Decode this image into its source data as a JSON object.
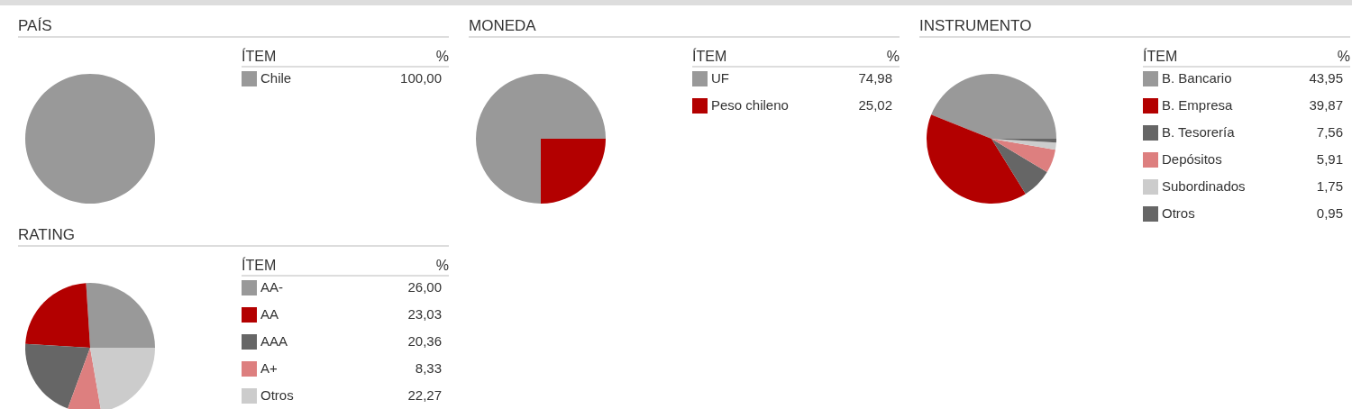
{
  "chart_data": [
    {
      "type": "pie",
      "title": "PAÍS",
      "legend_title": "ÍTEM",
      "annotations": [
        "%"
      ],
      "legend": "right",
      "categories": [
        "Chile"
      ],
      "values": [
        100
      ],
      "value_labels": [
        "100,00"
      ],
      "colors": [
        "#999999"
      ]
    },
    {
      "type": "pie",
      "title": "MONEDA",
      "legend_title": "ÍTEM",
      "annotations": [
        "%"
      ],
      "legend": "right",
      "categories": [
        "UF",
        "Peso chileno"
      ],
      "values": [
        74.98,
        25.02
      ],
      "value_labels": [
        "74,98",
        "25,02"
      ],
      "colors": [
        "#999999",
        "#b30000"
      ]
    },
    {
      "type": "pie",
      "title": "INSTRUMENTO",
      "legend_title": "ÍTEM",
      "annotations": [
        "%"
      ],
      "legend": "right",
      "categories": [
        "B. Bancario",
        "B. Empresa",
        "B. Tesorería",
        "Depósitos",
        "Subordinados",
        "Otros"
      ],
      "values": [
        43.95,
        39.87,
        7.56,
        5.91,
        1.75,
        0.95
      ],
      "value_labels": [
        "43,95",
        "39,87",
        "7,56",
        "5,91",
        "1,75",
        "0,95"
      ],
      "colors": [
        "#999999",
        "#b30000",
        "#666666",
        "#dd7f7f",
        "#cccccc",
        "#666666"
      ]
    },
    {
      "type": "pie",
      "title": "RATING",
      "legend_title": "ÍTEM",
      "annotations": [
        "%"
      ],
      "legend": "right",
      "categories": [
        "AA-",
        "AA",
        "AAA",
        "A+",
        "Otros"
      ],
      "values": [
        26.0,
        23.03,
        20.36,
        8.33,
        22.27
      ],
      "value_labels": [
        "26,00",
        "23,03",
        "20,36",
        "8,33",
        "22,27"
      ],
      "colors": [
        "#999999",
        "#b30000",
        "#666666",
        "#dd7f7f",
        "#cccccc"
      ]
    }
  ]
}
